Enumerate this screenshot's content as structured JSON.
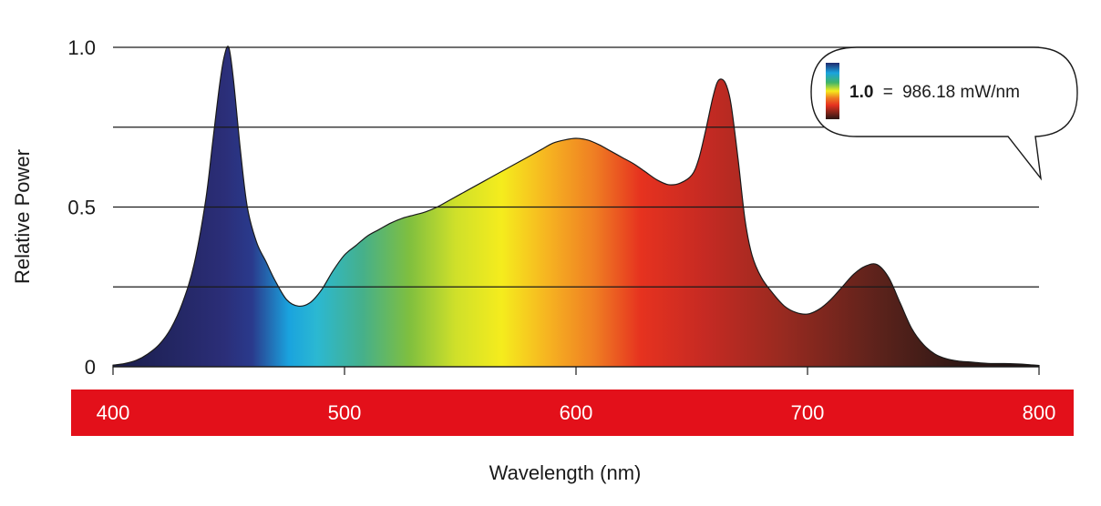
{
  "chart_data": {
    "type": "area",
    "xlabel": "Wavelength (nm)",
    "ylabel": "Relative Power",
    "xlim": [
      400,
      800
    ],
    "ylim": [
      0,
      1.0
    ],
    "x_ticks": [
      "400",
      "500",
      "600",
      "700",
      "800"
    ],
    "y_ticks": [
      "0",
      "0.5",
      "1.0"
    ],
    "gridlines_y": [
      0.25,
      0.5,
      0.75,
      1.0
    ],
    "legend": {
      "value": "1.0",
      "equals": "=",
      "unit_text": "986.18 mW/nm",
      "placement": "top-right"
    },
    "axis_band_color": "#e3101a",
    "series": [
      {
        "x": [
          400,
          405,
          410,
          415,
          420,
          425,
          430,
          435,
          440,
          443,
          446,
          448,
          450,
          452,
          455,
          458,
          462,
          466,
          470,
          475,
          480,
          485,
          490,
          495,
          500,
          505,
          510,
          515,
          520,
          525,
          530,
          535,
          540,
          545,
          550,
          555,
          560,
          565,
          570,
          575,
          580,
          585,
          590,
          595,
          600,
          605,
          610,
          615,
          620,
          625,
          630,
          635,
          640,
          645,
          650,
          653,
          656,
          659,
          661,
          663,
          665,
          667,
          670,
          673,
          676,
          680,
          685,
          690,
          695,
          700,
          705,
          710,
          715,
          720,
          725,
          730,
          735,
          740,
          745,
          750,
          755,
          760,
          765,
          770,
          775,
          780,
          785,
          790,
          795,
          800
        ],
        "y": [
          0.005,
          0.01,
          0.02,
          0.04,
          0.07,
          0.12,
          0.2,
          0.32,
          0.52,
          0.7,
          0.88,
          0.97,
          1.0,
          0.9,
          0.68,
          0.5,
          0.39,
          0.33,
          0.27,
          0.21,
          0.19,
          0.2,
          0.24,
          0.3,
          0.35,
          0.38,
          0.41,
          0.43,
          0.45,
          0.465,
          0.475,
          0.485,
          0.5,
          0.52,
          0.54,
          0.56,
          0.58,
          0.6,
          0.62,
          0.64,
          0.66,
          0.68,
          0.7,
          0.71,
          0.715,
          0.71,
          0.695,
          0.675,
          0.655,
          0.635,
          0.61,
          0.585,
          0.57,
          0.575,
          0.6,
          0.65,
          0.74,
          0.84,
          0.89,
          0.9,
          0.88,
          0.82,
          0.65,
          0.46,
          0.35,
          0.28,
          0.23,
          0.19,
          0.17,
          0.165,
          0.18,
          0.21,
          0.25,
          0.29,
          0.315,
          0.32,
          0.28,
          0.2,
          0.12,
          0.07,
          0.04,
          0.025,
          0.018,
          0.015,
          0.012,
          0.01,
          0.01,
          0.009,
          0.007,
          0.004
        ]
      }
    ]
  }
}
